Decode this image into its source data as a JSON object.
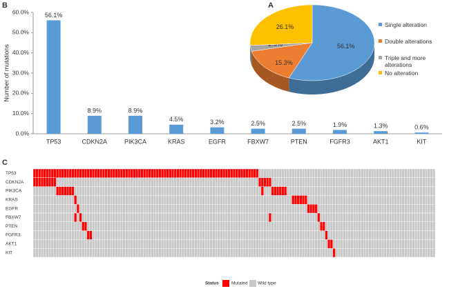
{
  "chart_data": [
    {
      "type": "bar",
      "panel": "B",
      "ylabel": "Number of mutations",
      "color": "#5b9bd5",
      "categories": [
        "TP53",
        "CDKN2A",
        "PIK3CA",
        "KRAS",
        "EGFR",
        "FBXW7",
        "PTEN",
        "FGFR3",
        "AKT1",
        "KIT"
      ],
      "values": [
        56.1,
        8.9,
        8.9,
        4.5,
        3.2,
        2.5,
        2.5,
        1.9,
        1.3,
        0.6
      ],
      "value_labels": [
        "56.1%",
        "8.9%",
        "8.9%",
        "4.5%",
        "3.2%",
        "2.5%",
        "2.5%",
        "1.9%",
        "1.3%",
        "0.6%"
      ],
      "ylim": [
        0,
        60
      ],
      "yticks": [
        {
          "value": 0,
          "label": "0.0%"
        },
        {
          "value": 10,
          "label": "10.0%"
        },
        {
          "value": 20,
          "label": "20.0%"
        },
        {
          "value": 30,
          "label": "30.0%"
        },
        {
          "value": 40,
          "label": "40.0%"
        },
        {
          "value": 50,
          "label": "50.0%"
        },
        {
          "value": 60,
          "label": "60.0%"
        }
      ]
    },
    {
      "type": "pie",
      "panel": "A",
      "categories": [
        "Single alteration",
        "Double alterations",
        "Triple and more alterations",
        "No alteration"
      ],
      "values": [
        56.1,
        15.3,
        2.5,
        26.1
      ],
      "value_labels": [
        "56.1%",
        "15.3%",
        "2.5%",
        "26.1%"
      ],
      "colors": [
        "#5b9bd5",
        "#ed7d31",
        "#a5a5a5",
        "#ffc000"
      ]
    },
    {
      "type": "heatmap",
      "panel": "C",
      "xlim": [
        0,
        157
      ],
      "rows": [
        {
          "name": "TP53",
          "mutated": [
            0,
            1,
            2,
            3,
            4,
            5,
            6,
            7,
            8,
            9,
            10,
            11,
            12,
            13,
            14,
            15,
            16,
            17,
            18,
            19,
            20,
            21,
            22,
            23,
            24,
            25,
            26,
            27,
            28,
            29,
            30,
            31,
            32,
            33,
            34,
            35,
            36,
            37,
            38,
            39,
            40,
            41,
            42,
            43,
            44,
            45,
            46,
            47,
            48,
            49,
            50,
            51,
            52,
            53,
            54,
            55,
            56,
            57,
            58,
            59,
            60,
            61,
            62,
            63,
            64,
            65,
            66,
            67,
            68,
            69,
            70,
            71,
            72,
            73,
            74,
            75,
            76,
            77,
            78,
            79,
            80,
            81,
            82,
            83,
            84,
            85,
            86,
            87
          ]
        },
        {
          "name": "CDKN2A",
          "mutated": [
            0,
            1,
            2,
            3,
            4,
            5,
            6,
            7,
            8,
            88,
            89,
            90,
            91,
            92
          ]
        },
        {
          "name": "PIK3CA",
          "mutated": [
            9,
            10,
            11,
            12,
            13,
            14,
            15,
            89,
            93,
            94,
            95,
            96,
            97,
            98
          ]
        },
        {
          "name": "KRAS",
          "mutated": [
            16,
            101,
            102,
            103,
            104,
            105,
            106
          ]
        },
        {
          "name": "EGFR",
          "mutated": [
            17,
            107,
            108,
            109,
            110
          ]
        },
        {
          "name": "FBXW7",
          "mutated": [
            16,
            18,
            92,
            111
          ]
        },
        {
          "name": "PTEN",
          "mutated": [
            19,
            20,
            112,
            113
          ]
        },
        {
          "name": "FGFR3",
          "mutated": [
            21,
            22,
            114
          ]
        },
        {
          "name": "AKT1",
          "mutated": [
            115,
            116
          ]
        },
        {
          "name": "KIT",
          "mutated": [
            117
          ]
        }
      ],
      "legend": {
        "title": "Status",
        "items": [
          {
            "name": "Mutated",
            "color": "#ff0000"
          },
          {
            "name": "Wild type",
            "color": "#c8c8c8"
          }
        ]
      }
    }
  ]
}
